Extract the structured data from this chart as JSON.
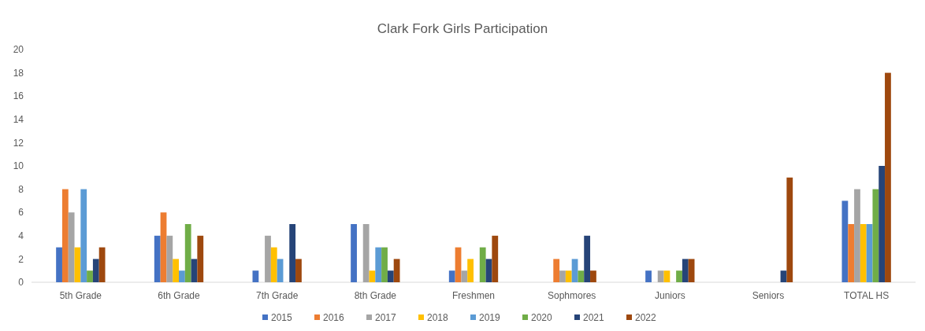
{
  "chart_data": {
    "type": "bar",
    "title": "Clark Fork Girls Participation",
    "categories": [
      "5th Grade",
      "6th Grade",
      "7th Grade",
      "8th Grade",
      "Freshmen",
      "Sophmores",
      "Juniors",
      "Seniors",
      "TOTAL HS"
    ],
    "series": [
      {
        "name": "2015",
        "color": "#4472c4",
        "values": [
          3,
          4,
          1,
          5,
          1,
          null,
          1,
          null,
          7
        ]
      },
      {
        "name": "2016",
        "color": "#ed7d31",
        "values": [
          8,
          6,
          null,
          null,
          3,
          2,
          null,
          null,
          5
        ]
      },
      {
        "name": "2017",
        "color": "#a5a5a5",
        "values": [
          6,
          4,
          4,
          5,
          1,
          1,
          1,
          null,
          8
        ]
      },
      {
        "name": "2018",
        "color": "#ffc000",
        "values": [
          3,
          2,
          3,
          1,
          2,
          1,
          1,
          null,
          5
        ]
      },
      {
        "name": "2019",
        "color": "#5b9bd5",
        "values": [
          8,
          1,
          2,
          3,
          null,
          2,
          null,
          null,
          5
        ]
      },
      {
        "name": "2020",
        "color": "#70ad47",
        "values": [
          1,
          5,
          null,
          3,
          3,
          1,
          1,
          null,
          8
        ]
      },
      {
        "name": "2021",
        "color": "#264478",
        "values": [
          2,
          2,
          5,
          1,
          2,
          4,
          2,
          1,
          10
        ]
      },
      {
        "name": "2022",
        "color": "#9e480e",
        "values": [
          3,
          4,
          2,
          2,
          4,
          1,
          2,
          9,
          18
        ]
      }
    ],
    "ylim": [
      0,
      20
    ],
    "yticks": [
      0,
      2,
      4,
      6,
      8,
      10,
      12,
      14,
      16,
      18,
      20
    ],
    "grid": false,
    "legend": "bottom"
  }
}
